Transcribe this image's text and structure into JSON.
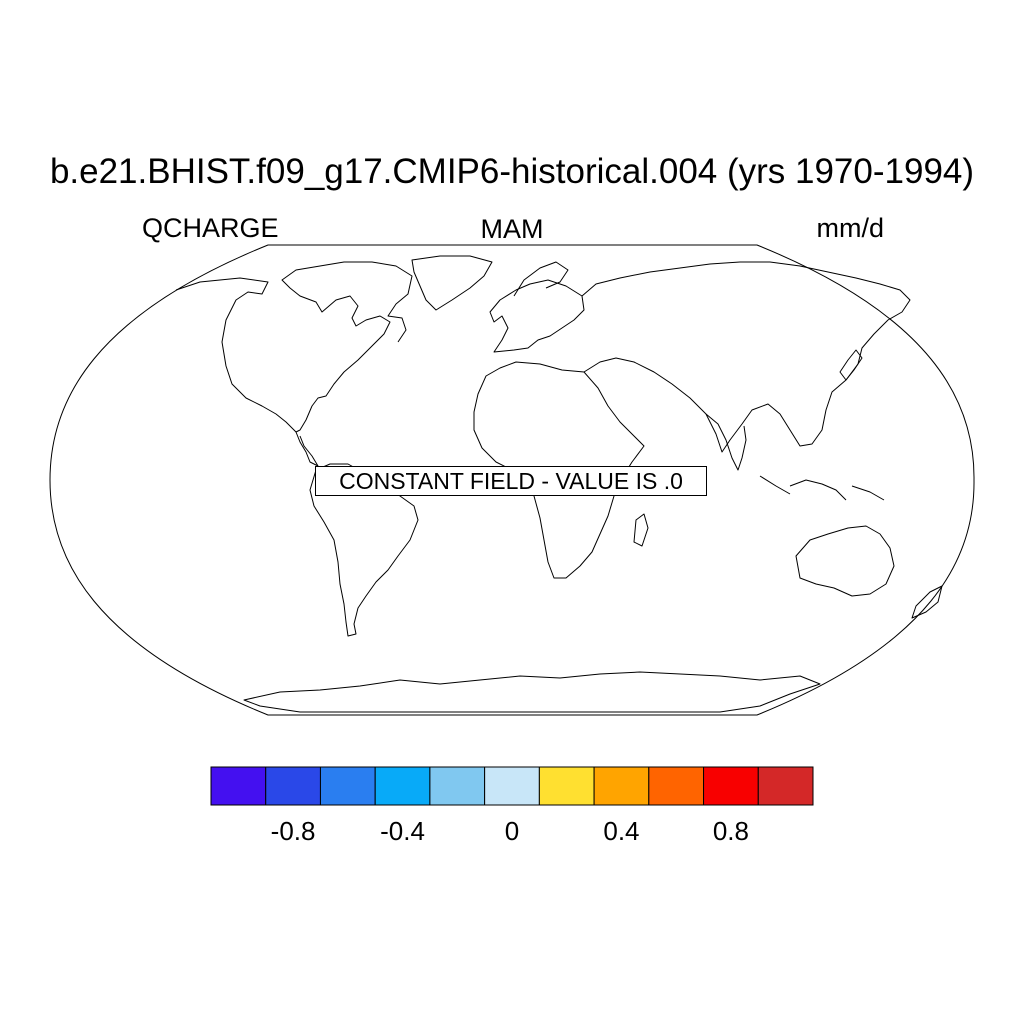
{
  "title": "b.e21.BHIST.f09_g17.CMIP6-historical.004 (yrs 1970-1994)",
  "left_label": "QCHARGE",
  "center_label": "MAM",
  "right_label": "mm/d",
  "map_message": "CONSTANT FIELD - VALUE IS .0",
  "projection": "Robinson",
  "colorbar": {
    "levels": [
      -1.0,
      -0.8,
      -0.6,
      -0.4,
      -0.2,
      0,
      0.2,
      0.4,
      0.6,
      0.8,
      1.0
    ],
    "colors": [
      "#4410f0",
      "#2a48e8",
      "#2a7ef0",
      "#08aaf8",
      "#80c8f0",
      "#c8e6f8",
      "#ffe030",
      "#ffa400",
      "#ff6400",
      "#f80000",
      "#d42828"
    ],
    "tick_labels": [
      "-0.8",
      "-0.4",
      "0",
      "0.4",
      "0.8"
    ],
    "tick_values": [
      -0.8,
      -0.4,
      0,
      0.4,
      0.8
    ]
  }
}
